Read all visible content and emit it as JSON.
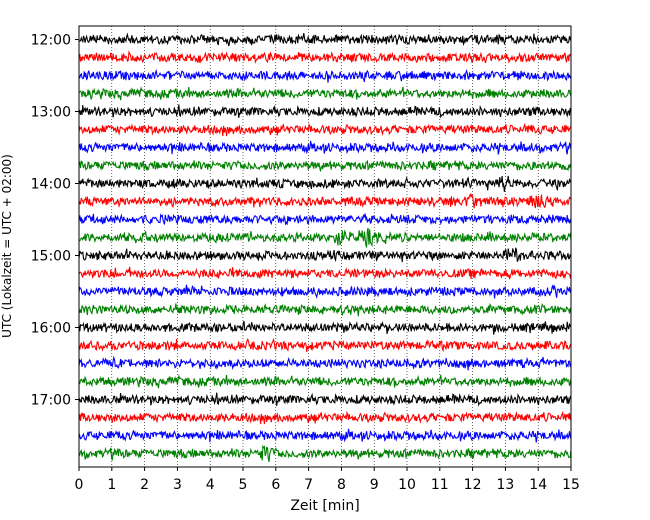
{
  "chart_data": {
    "type": "line",
    "xlabel": "Zeit  [min]",
    "ylabel": "UTC (Lokalzeit = UTC + 02:00)",
    "xlim": [
      0,
      15
    ],
    "x_ticks": [
      0,
      1,
      2,
      3,
      4,
      5,
      6,
      7,
      8,
      9,
      10,
      11,
      12,
      13,
      14,
      15
    ],
    "y_tick_labels": [
      "12:00",
      "13:00",
      "14:00",
      "15:00",
      "16:00",
      "17:00"
    ],
    "grid": "vertical dotted lines at each minute",
    "trace_colors": [
      "#000000",
      "#ff0000",
      "#0000ff",
      "#008000"
    ],
    "traces": [
      {
        "start": "12:00",
        "color": "#000000"
      },
      {
        "start": "12:15",
        "color": "#ff0000"
      },
      {
        "start": "12:30",
        "color": "#0000ff"
      },
      {
        "start": "12:45",
        "color": "#008000"
      },
      {
        "start": "13:00",
        "color": "#000000"
      },
      {
        "start": "13:15",
        "color": "#ff0000"
      },
      {
        "start": "13:30",
        "color": "#0000ff"
      },
      {
        "start": "13:45",
        "color": "#008000"
      },
      {
        "start": "14:00",
        "color": "#000000",
        "events": [
          13.0
        ]
      },
      {
        "start": "14:15",
        "color": "#ff0000",
        "events": [
          12.0,
          14.0
        ]
      },
      {
        "start": "14:30",
        "color": "#0000ff"
      },
      {
        "start": "14:45",
        "color": "#008000",
        "events": [
          8.0,
          8.8
        ]
      },
      {
        "start": "15:00",
        "color": "#000000",
        "events": [
          13.2
        ]
      },
      {
        "start": "15:15",
        "color": "#ff0000"
      },
      {
        "start": "15:30",
        "color": "#0000ff"
      },
      {
        "start": "15:45",
        "color": "#008000"
      },
      {
        "start": "16:00",
        "color": "#000000"
      },
      {
        "start": "16:15",
        "color": "#ff0000"
      },
      {
        "start": "16:30",
        "color": "#0000ff"
      },
      {
        "start": "16:45",
        "color": "#008000"
      },
      {
        "start": "17:00",
        "color": "#000000"
      },
      {
        "start": "17:15",
        "color": "#ff0000"
      },
      {
        "start": "17:30",
        "color": "#0000ff"
      },
      {
        "start": "17:45",
        "color": "#008000",
        "events": [
          5.7
        ]
      }
    ]
  }
}
